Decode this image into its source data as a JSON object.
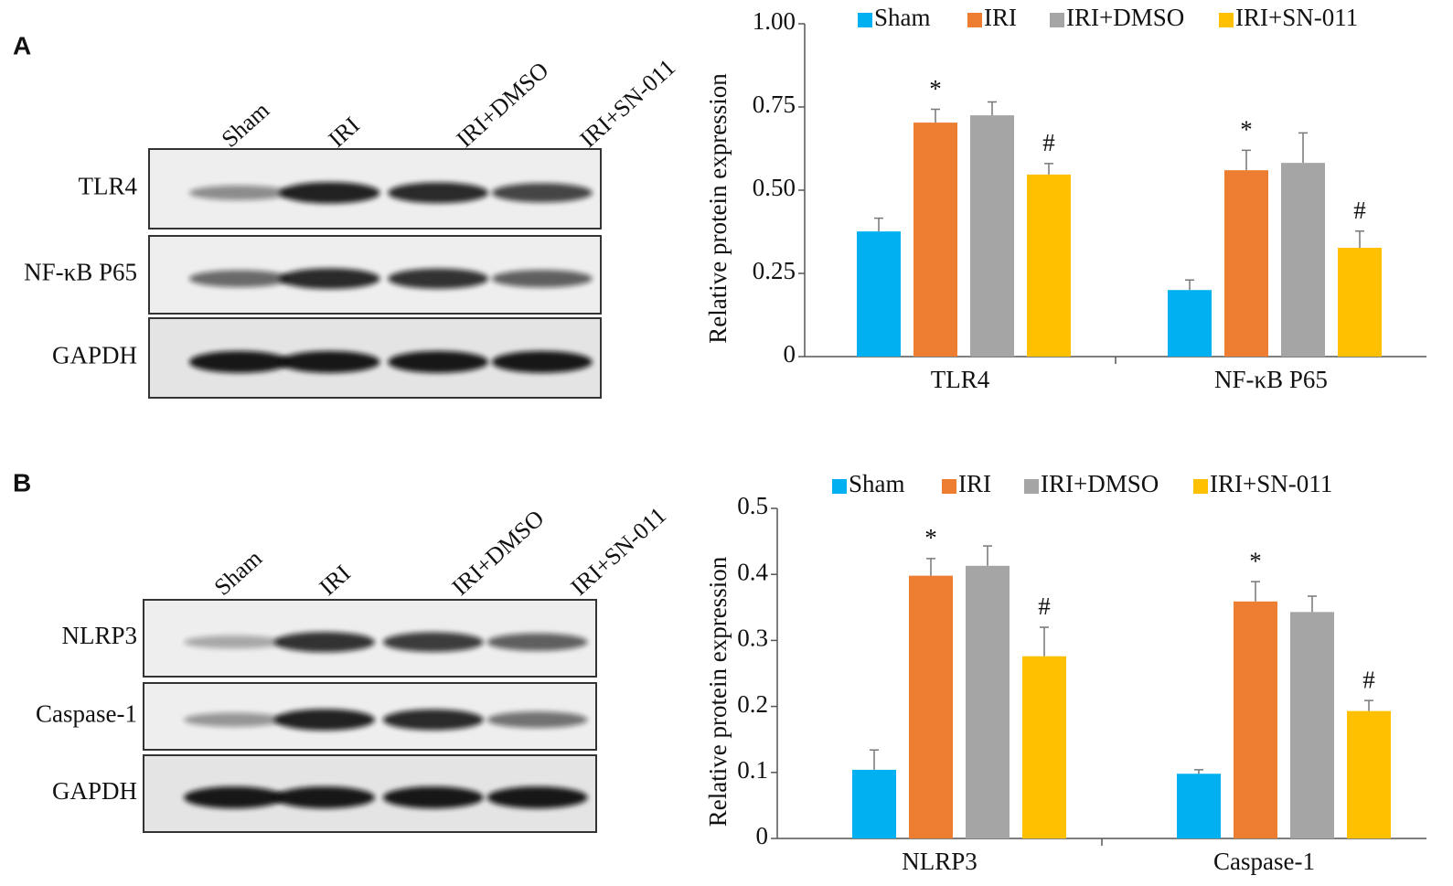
{
  "panels": [
    "A",
    "B"
  ],
  "blots": [
    {
      "lanes": [
        "Sham",
        "IRI",
        "IRI+DMSO",
        "IRI+SN-011"
      ],
      "rows": [
        "TLR4",
        "NF-κB P65",
        "GAPDH"
      ]
    },
    {
      "lanes": [
        "Sham",
        "IRI",
        "IRI+DMSO",
        "IRI+SN-011"
      ],
      "rows": [
        "NLRP3",
        "Caspase-1",
        "GAPDH"
      ]
    }
  ],
  "chart_data": [
    {
      "type": "bar",
      "ylabel": "Relative protein expression",
      "categories": [
        "TLR4",
        "NF-κB P65"
      ],
      "ylim": [
        0,
        1
      ],
      "yticks": [
        0,
        0.25,
        {
          "value": 0.5,
          "label": "0.50"
        },
        0.75,
        {
          "value": 1,
          "label": "1.00"
        }
      ],
      "series": [
        {
          "name": "Sham",
          "color": "#00b0f0",
          "values": [
            0.376,
            0.2
          ],
          "errors": [
            0.04,
            0.03
          ]
        },
        {
          "name": "IRI",
          "color": "#ed7d31",
          "values": [
            0.703,
            0.56
          ],
          "errors": [
            0.04,
            0.06
          ],
          "annotations": [
            "*",
            "*"
          ]
        },
        {
          "name": "IRI+DMSO",
          "color": "#a5a5a5",
          "values": [
            0.725,
            0.582
          ],
          "errors": [
            0.04,
            0.09
          ]
        },
        {
          "name": "IRI+SN-011",
          "color": "#ffc000",
          "values": [
            0.547,
            0.327
          ],
          "errors": [
            0.033,
            0.05
          ],
          "annotations": [
            "#",
            "#"
          ]
        }
      ]
    },
    {
      "type": "bar",
      "ylabel": "Relative protein expression",
      "categories": [
        "NLRP3",
        "Caspase-1"
      ],
      "ylim": [
        0,
        0.5
      ],
      "yticks": [
        0,
        0.1,
        0.2,
        0.3,
        0.4,
        0.5
      ],
      "series": [
        {
          "name": "Sham",
          "color": "#00b0f0",
          "values": [
            0.104,
            0.098
          ],
          "errors": [
            0.03,
            0.006
          ]
        },
        {
          "name": "IRI",
          "color": "#ed7d31",
          "values": [
            0.398,
            0.359
          ],
          "errors": [
            0.026,
            0.03
          ],
          "annotations": [
            "*",
            "*"
          ]
        },
        {
          "name": "IRI+DMSO",
          "color": "#a5a5a5",
          "values": [
            0.413,
            0.343
          ],
          "errors": [
            0.03,
            0.024
          ]
        },
        {
          "name": "IRI+SN-011",
          "color": "#ffc000",
          "values": [
            0.276,
            0.193
          ],
          "errors": [
            0.044,
            0.016
          ],
          "annotations": [
            "#",
            "#"
          ]
        }
      ]
    }
  ]
}
